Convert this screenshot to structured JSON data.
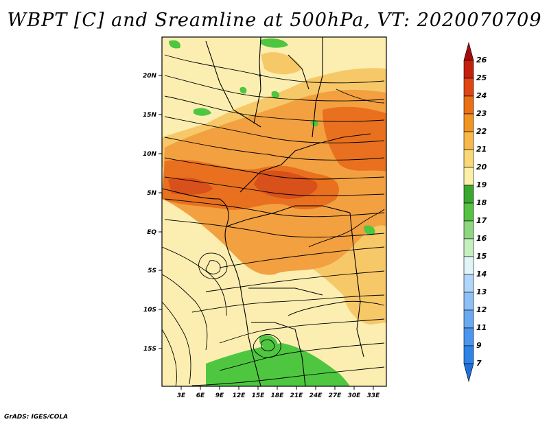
{
  "title": "WBPT [C] and Sreamline at 500hPa, VT: 2020070709",
  "credit": "GrADS: IGES/COLA",
  "map": {
    "lat_labels": [
      "20N",
      "15N",
      "10N",
      "5N",
      "EQ",
      "5S",
      "10S",
      "15S"
    ],
    "lon_labels": [
      "3E",
      "6E",
      "9E",
      "12E",
      "15E",
      "18E",
      "21E",
      "24E",
      "27E",
      "30E",
      "33E"
    ]
  },
  "colorbar": {
    "levels": [
      "7",
      "9",
      "11",
      "12",
      "13",
      "14",
      "15",
      "16",
      "17",
      "18",
      "19",
      "20",
      "21",
      "22",
      "23",
      "24",
      "25",
      "26"
    ],
    "colors": [
      "#1e6fd9",
      "#2f82e6",
      "#4a96ee",
      "#6aaaf2",
      "#8cc0f7",
      "#b0d6fa",
      "#e0f5f8",
      "#c6efc0",
      "#8ed67f",
      "#55c244",
      "#3aa82e",
      "#fbf0a8",
      "#f9d87a",
      "#f7b94c",
      "#f29422",
      "#ea6f15",
      "#e04514",
      "#c4200e",
      "#a50b0b"
    ]
  },
  "colors": {
    "green": "#4ec640",
    "cream": "#fbeeb0",
    "light_orange": "#f7c868",
    "orange": "#f2a040",
    "dark_orange": "#e8701e",
    "red_orange": "#d9511a"
  }
}
